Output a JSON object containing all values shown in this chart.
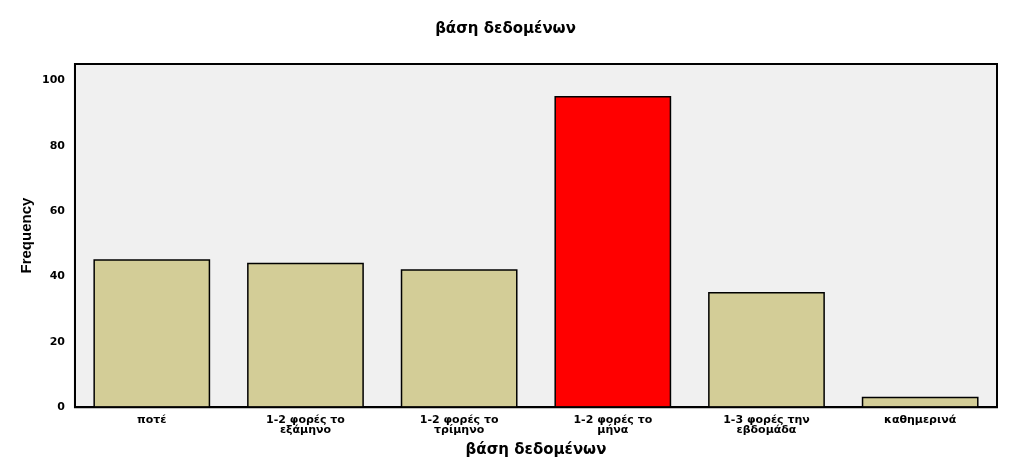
{
  "chart_data": {
    "type": "bar",
    "title": "βάση δεδομένων",
    "xlabel": "βάση δεδομένων",
    "ylabel": "Frequency",
    "categories": [
      "ποτέ",
      "1-2 φορές το εξάμηνο",
      "1-2 φορές το τρίμηνο",
      "1-2 φορές το μήνα",
      "1-3 φορές την εβδομάδα",
      "καθημερινά"
    ],
    "values": [
      45,
      44,
      42,
      95,
      35,
      3
    ],
    "colors": [
      "#d3cd97",
      "#d3cd97",
      "#d3cd97",
      "#ff0000",
      "#d3cd97",
      "#d3cd97"
    ],
    "ylim": [
      0,
      105
    ],
    "yticks": [
      0,
      20,
      40,
      60,
      80,
      100
    ],
    "grid": false,
    "legend": false
  }
}
